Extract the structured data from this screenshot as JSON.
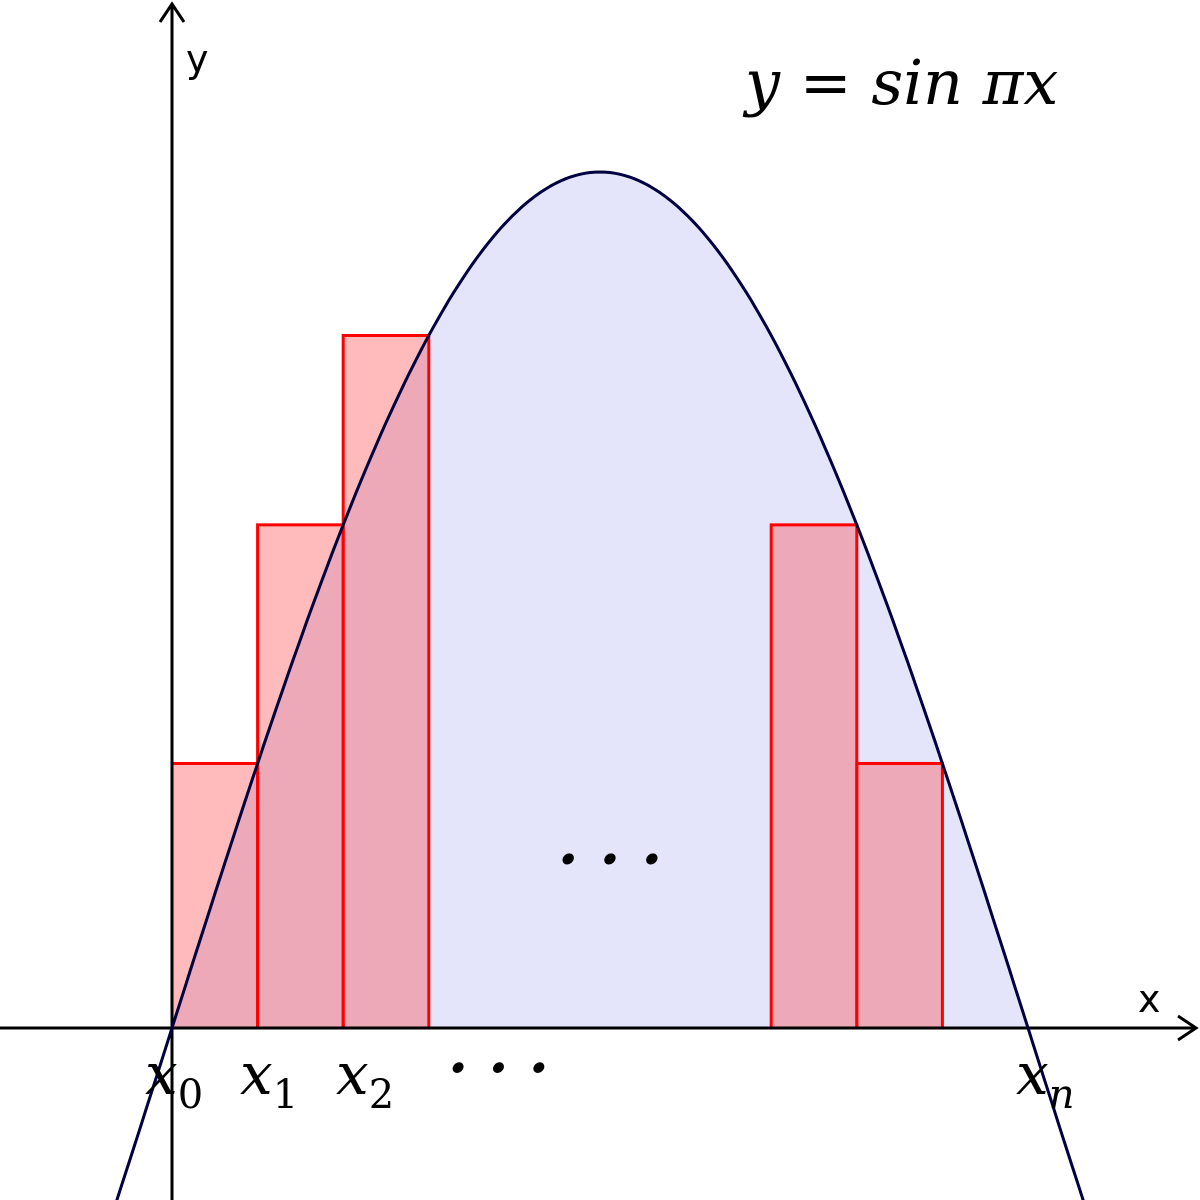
{
  "axes": {
    "x_label": "x",
    "y_label": "y"
  },
  "equation": "y = sin πx",
  "middle_dots": "· · ·",
  "tick_labels": [
    {
      "base": "x",
      "sub": "0"
    },
    {
      "base": "x",
      "sub": "1"
    },
    {
      "base": "x",
      "sub": "2"
    },
    {
      "text": "· · ·"
    },
    {
      "base": "x",
      "sub": "n"
    }
  ]
}
